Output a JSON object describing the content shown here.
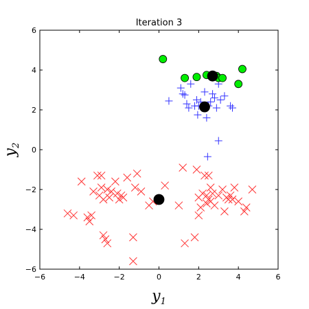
{
  "chart_data": {
    "type": "scatter",
    "title": "Iteration 3",
    "xlabel": {
      "base": "y",
      "sub": "1"
    },
    "ylabel": {
      "base": "y",
      "sub": "2"
    },
    "xlim": [
      -6,
      6
    ],
    "ylim": [
      -6,
      6
    ],
    "xticks": [
      -6,
      -4,
      -2,
      0,
      2,
      4,
      6
    ],
    "yticks": [
      -6,
      -4,
      -2,
      0,
      2,
      4,
      6
    ],
    "xtick_labels": [
      "−6",
      "−4",
      "−2",
      "0",
      "2",
      "4",
      "6"
    ],
    "ytick_labels": [
      "−6",
      "−4",
      "−2",
      "0",
      "2",
      "4",
      "6"
    ],
    "grid": false,
    "series": [
      {
        "marker": "x",
        "color": "#ff3333",
        "points": [
          [
            -4.6,
            -3.2
          ],
          [
            -4.3,
            -3.3
          ],
          [
            -3.9,
            -1.6
          ],
          [
            -3.6,
            -3.4
          ],
          [
            -3.5,
            -3.6
          ],
          [
            -3.4,
            -3.3
          ],
          [
            -3.3,
            -2.1
          ],
          [
            -3.1,
            -1.3
          ],
          [
            -3.0,
            -2.3
          ],
          [
            -2.9,
            -1.3
          ],
          [
            -2.9,
            -1.9
          ],
          [
            -2.8,
            -4.3
          ],
          [
            -2.8,
            -2.5
          ],
          [
            -2.7,
            -4.5
          ],
          [
            -2.6,
            -2.0
          ],
          [
            -2.6,
            -4.7
          ],
          [
            -2.5,
            -2.4
          ],
          [
            -2.4,
            -2.1
          ],
          [
            -2.2,
            -1.6
          ],
          [
            -2.1,
            -2.2
          ],
          [
            -2.0,
            -2.5
          ],
          [
            -1.9,
            -2.3
          ],
          [
            -1.8,
            -2.4
          ],
          [
            -1.6,
            -1.4
          ],
          [
            -1.3,
            -5.6
          ],
          [
            -1.3,
            -4.4
          ],
          [
            -1.2,
            -1.9
          ],
          [
            -1.1,
            -1.2
          ],
          [
            -0.9,
            -2.1
          ],
          [
            -0.5,
            -2.8
          ],
          [
            -0.3,
            -2.6
          ],
          [
            0.3,
            -1.8
          ],
          [
            1.0,
            -2.8
          ],
          [
            1.2,
            -0.9
          ],
          [
            1.3,
            -4.7
          ],
          [
            1.8,
            -4.4
          ],
          [
            1.9,
            -1.0
          ],
          [
            2.0,
            -2.4
          ],
          [
            2.0,
            -3.3
          ],
          [
            2.1,
            -2.9
          ],
          [
            2.2,
            -2.2
          ],
          [
            2.3,
            -1.3
          ],
          [
            2.4,
            -2.7
          ],
          [
            2.4,
            -2.3
          ],
          [
            2.5,
            -1.3
          ],
          [
            2.5,
            -2.5
          ],
          [
            2.6,
            -2.6
          ],
          [
            2.6,
            -1.9
          ],
          [
            2.7,
            -2.2
          ],
          [
            2.8,
            -2.8
          ],
          [
            3.0,
            -2.3
          ],
          [
            3.2,
            -2.0
          ],
          [
            3.3,
            -3.1
          ],
          [
            3.4,
            -2.4
          ],
          [
            3.5,
            -2.5
          ],
          [
            3.6,
            -2.3
          ],
          [
            3.7,
            -2.5
          ],
          [
            3.8,
            -1.9
          ],
          [
            4.0,
            -2.6
          ],
          [
            4.3,
            -3.1
          ],
          [
            4.4,
            -2.9
          ],
          [
            4.7,
            -2.0
          ]
        ]
      },
      {
        "marker": "+",
        "color": "#3333ff",
        "points": [
          [
            0.5,
            2.45
          ],
          [
            1.1,
            3.1
          ],
          [
            1.2,
            2.8
          ],
          [
            1.3,
            2.75
          ],
          [
            1.4,
            2.3
          ],
          [
            1.5,
            2.1
          ],
          [
            1.6,
            3.3
          ],
          [
            1.8,
            2.2
          ],
          [
            1.9,
            2.5
          ],
          [
            1.95,
            1.75
          ],
          [
            2.0,
            2.2
          ],
          [
            2.1,
            2.4
          ],
          [
            2.2,
            2.2
          ],
          [
            2.3,
            2.9
          ],
          [
            2.4,
            1.6
          ],
          [
            2.5,
            2.2
          ],
          [
            2.6,
            2.4
          ],
          [
            2.7,
            2.8
          ],
          [
            2.8,
            2.6
          ],
          [
            2.9,
            2.1
          ],
          [
            3.0,
            0.45
          ],
          [
            3.0,
            3.3
          ],
          [
            3.1,
            2.5
          ],
          [
            3.3,
            2.7
          ],
          [
            3.6,
            2.2
          ],
          [
            3.7,
            2.1
          ],
          [
            2.45,
            -0.35
          ]
        ]
      },
      {
        "marker": "o",
        "color": "#00ee00",
        "points": [
          [
            0.2,
            4.55
          ],
          [
            1.3,
            3.6
          ],
          [
            1.9,
            3.65
          ],
          [
            2.4,
            3.75
          ],
          [
            2.9,
            3.7
          ],
          [
            3.0,
            3.6
          ],
          [
            3.2,
            3.6
          ],
          [
            4.0,
            3.3
          ],
          [
            4.2,
            4.05
          ]
        ]
      },
      {
        "marker": "centroid",
        "color": "#000000",
        "points": [
          [
            2.7,
            3.7
          ],
          [
            2.3,
            2.15
          ],
          [
            0.0,
            -2.5
          ]
        ]
      }
    ]
  }
}
